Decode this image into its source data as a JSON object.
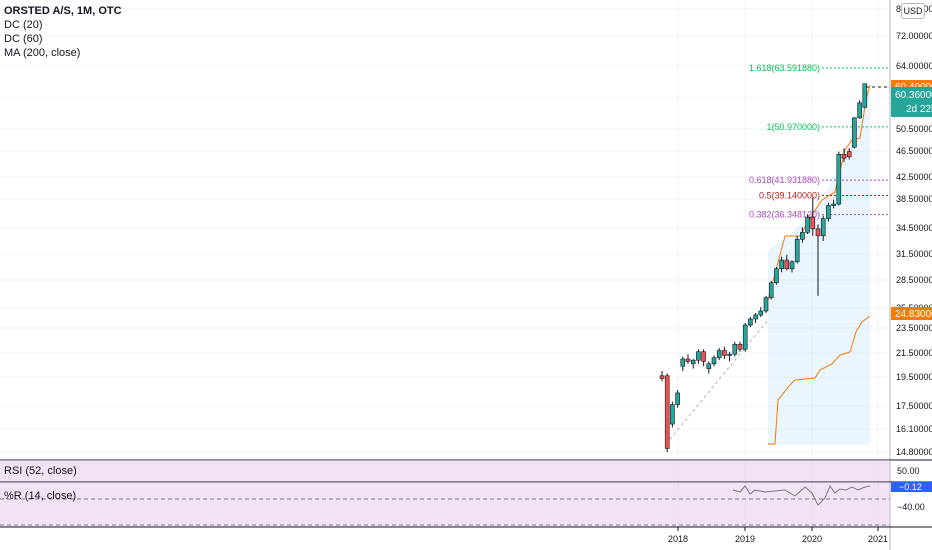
{
  "legend": {
    "title": "ORSTED A/S, 1M, OTC",
    "indicators": [
      "DC (20)",
      "DC (60)",
      "MA (200, close)"
    ]
  },
  "currency_badge": "USD",
  "price_axis": {
    "ticks": [
      "80.000000",
      "72.000000",
      "64.000000",
      "57.500000",
      "50.500000",
      "46.500000",
      "42.500000",
      "38.500000",
      "34.500000",
      "31.500000",
      "28.500000",
      "25.500000",
      "23.500000",
      "21.500000",
      "19.500000",
      "17.500000",
      "16.100000",
      "14.800000"
    ],
    "last_price_label": "60.400000",
    "last_price_color": "#f57c00",
    "current_price_label": "60.360000",
    "countdown_label": "2d 22h",
    "current_price_color": "#26a69a",
    "ma_label": "24.830000",
    "ma_color": "#f57c00"
  },
  "fib_levels": [
    {
      "label": "1.618(63.591880)",
      "value": 63.59188,
      "color": "#00c853"
    },
    {
      "label": "1(50.970000)",
      "value": 50.97,
      "color": "#00c853"
    },
    {
      "label": "0.618(41.931880)",
      "value": 41.93188,
      "color": "#ab47bc"
    },
    {
      "label": "0.5(39.140000)",
      "value": 39.14,
      "color": "#b71c1c"
    },
    {
      "label": "0.382(36.348120)",
      "value": 36.34812,
      "color": "#ab47bc"
    }
  ],
  "rsi": {
    "label": "RSI (52, close)",
    "axis_tick": "50.00"
  },
  "williams": {
    "label": "%R (14, close)",
    "value_label": "−0.12",
    "axis_tick": "−40.00"
  },
  "time_axis": [
    "2018",
    "2019",
    "2020",
    "2021"
  ],
  "chart_data": {
    "type": "candlestick",
    "title": "ORSTED A/S, 1M, OTC",
    "up_color": "#26a69a",
    "down_color": "#ef5350",
    "x": [
      "2017-09",
      "2017-10",
      "2017-11",
      "2017-12",
      "2018-01",
      "2018-02",
      "2018-03",
      "2018-04",
      "2018-05",
      "2018-06",
      "2018-07",
      "2018-08",
      "2018-09",
      "2018-10",
      "2018-11",
      "2018-12",
      "2019-01",
      "2019-02",
      "2019-03",
      "2019-04",
      "2019-05",
      "2019-06",
      "2019-07",
      "2019-08",
      "2019-09",
      "2019-10",
      "2019-11",
      "2019-12",
      "2020-01",
      "2020-02",
      "2020-03",
      "2020-04",
      "2020-05",
      "2020-06",
      "2020-07",
      "2020-08",
      "2020-09",
      "2020-10",
      "2020-11",
      "2020-12"
    ],
    "ohlc": [
      [
        19.6,
        20.0,
        19.2,
        19.4
      ],
      [
        19.6,
        19.8,
        14.8,
        15.0
      ],
      [
        16.4,
        17.8,
        16.2,
        17.6
      ],
      [
        17.6,
        18.6,
        17.4,
        18.4
      ],
      [
        20.4,
        21.2,
        20.0,
        21.0
      ],
      [
        21.0,
        21.4,
        20.6,
        20.8
      ],
      [
        20.6,
        21.0,
        20.2,
        20.9
      ],
      [
        20.9,
        21.8,
        20.6,
        21.6
      ],
      [
        21.6,
        21.8,
        20.4,
        20.8
      ],
      [
        20.2,
        20.8,
        19.8,
        20.6
      ],
      [
        20.6,
        21.3,
        20.4,
        21.1
      ],
      [
        21.1,
        21.9,
        20.9,
        21.7
      ],
      [
        21.7,
        22.0,
        21.0,
        21.3
      ],
      [
        21.3,
        21.6,
        20.8,
        21.4
      ],
      [
        21.4,
        22.4,
        21.2,
        22.2
      ],
      [
        22.2,
        22.4,
        21.6,
        21.8
      ],
      [
        21.8,
        24.0,
        21.6,
        23.8
      ],
      [
        23.8,
        24.6,
        23.6,
        24.4
      ],
      [
        24.4,
        25.0,
        24.0,
        24.8
      ],
      [
        24.8,
        25.6,
        24.6,
        25.2
      ],
      [
        25.2,
        26.8,
        25.0,
        26.6
      ],
      [
        26.6,
        28.4,
        26.4,
        28.2
      ],
      [
        28.2,
        30.0,
        28.0,
        29.8
      ],
      [
        29.8,
        31.2,
        29.4,
        30.8
      ],
      [
        30.8,
        31.4,
        29.6,
        29.8
      ],
      [
        29.8,
        30.8,
        29.4,
        30.6
      ],
      [
        30.6,
        33.6,
        30.4,
        33.2
      ],
      [
        33.2,
        34.6,
        32.8,
        34.0
      ],
      [
        34.0,
        36.4,
        33.8,
        36.0
      ],
      [
        36.0,
        38.8,
        33.6,
        34.4
      ],
      [
        34.4,
        35.0,
        26.8,
        33.6
      ],
      [
        33.6,
        36.2,
        33.0,
        35.8
      ],
      [
        35.8,
        38.0,
        35.4,
        37.6
      ],
      [
        37.6,
        38.4,
        37.2,
        37.8
      ],
      [
        37.8,
        46.4,
        37.6,
        46.0
      ],
      [
        46.0,
        47.0,
        44.8,
        45.4
      ],
      [
        46.4,
        47.0,
        45.2,
        45.6
      ],
      [
        47.2,
        53.2,
        47.0,
        53.0
      ],
      [
        53.0,
        57.0,
        52.8,
        56.4
      ],
      [
        55.4,
        60.4,
        55.2,
        60.4
      ]
    ]
  }
}
